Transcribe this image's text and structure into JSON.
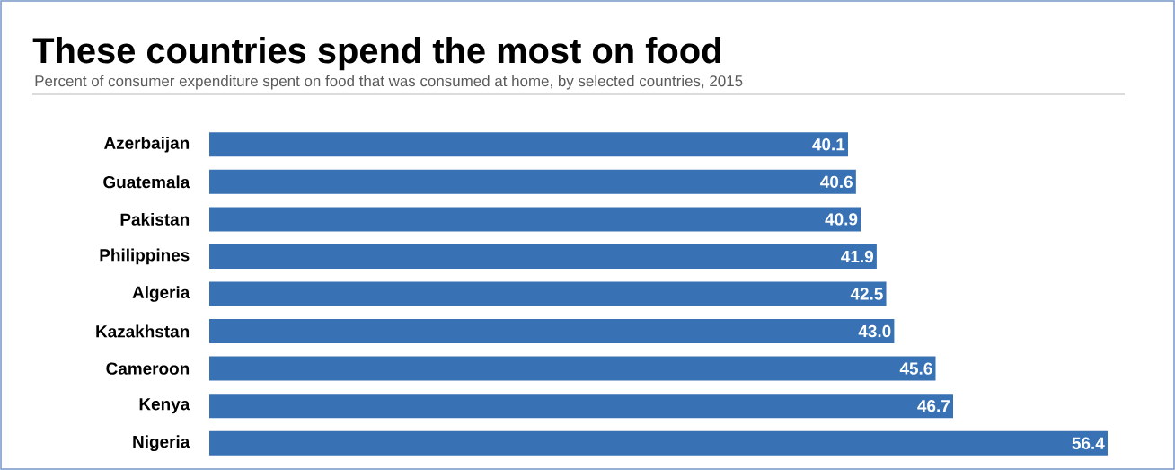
{
  "chart_data": {
    "type": "bar",
    "orientation": "horizontal",
    "title": "These countries spend the most on food",
    "subtitle": "Percent of consumer expenditure spent on food that was consumed at home, by selected countries, 2015",
    "categories": [
      "Azerbaijan",
      "Guatemala",
      "Pakistan",
      "Philippines",
      "Algeria",
      "Kazakhstan",
      "Cameroon",
      "Kenya",
      "Nigeria"
    ],
    "values": [
      40.1,
      40.6,
      40.9,
      41.9,
      42.5,
      43.0,
      45.6,
      46.7,
      56.4
    ],
    "value_labels": [
      "40.1",
      "40.6",
      "40.9",
      "41.9",
      "42.5",
      "43.0",
      "45.6",
      "46.7",
      "56.4"
    ],
    "color": "#3872b4"
  }
}
